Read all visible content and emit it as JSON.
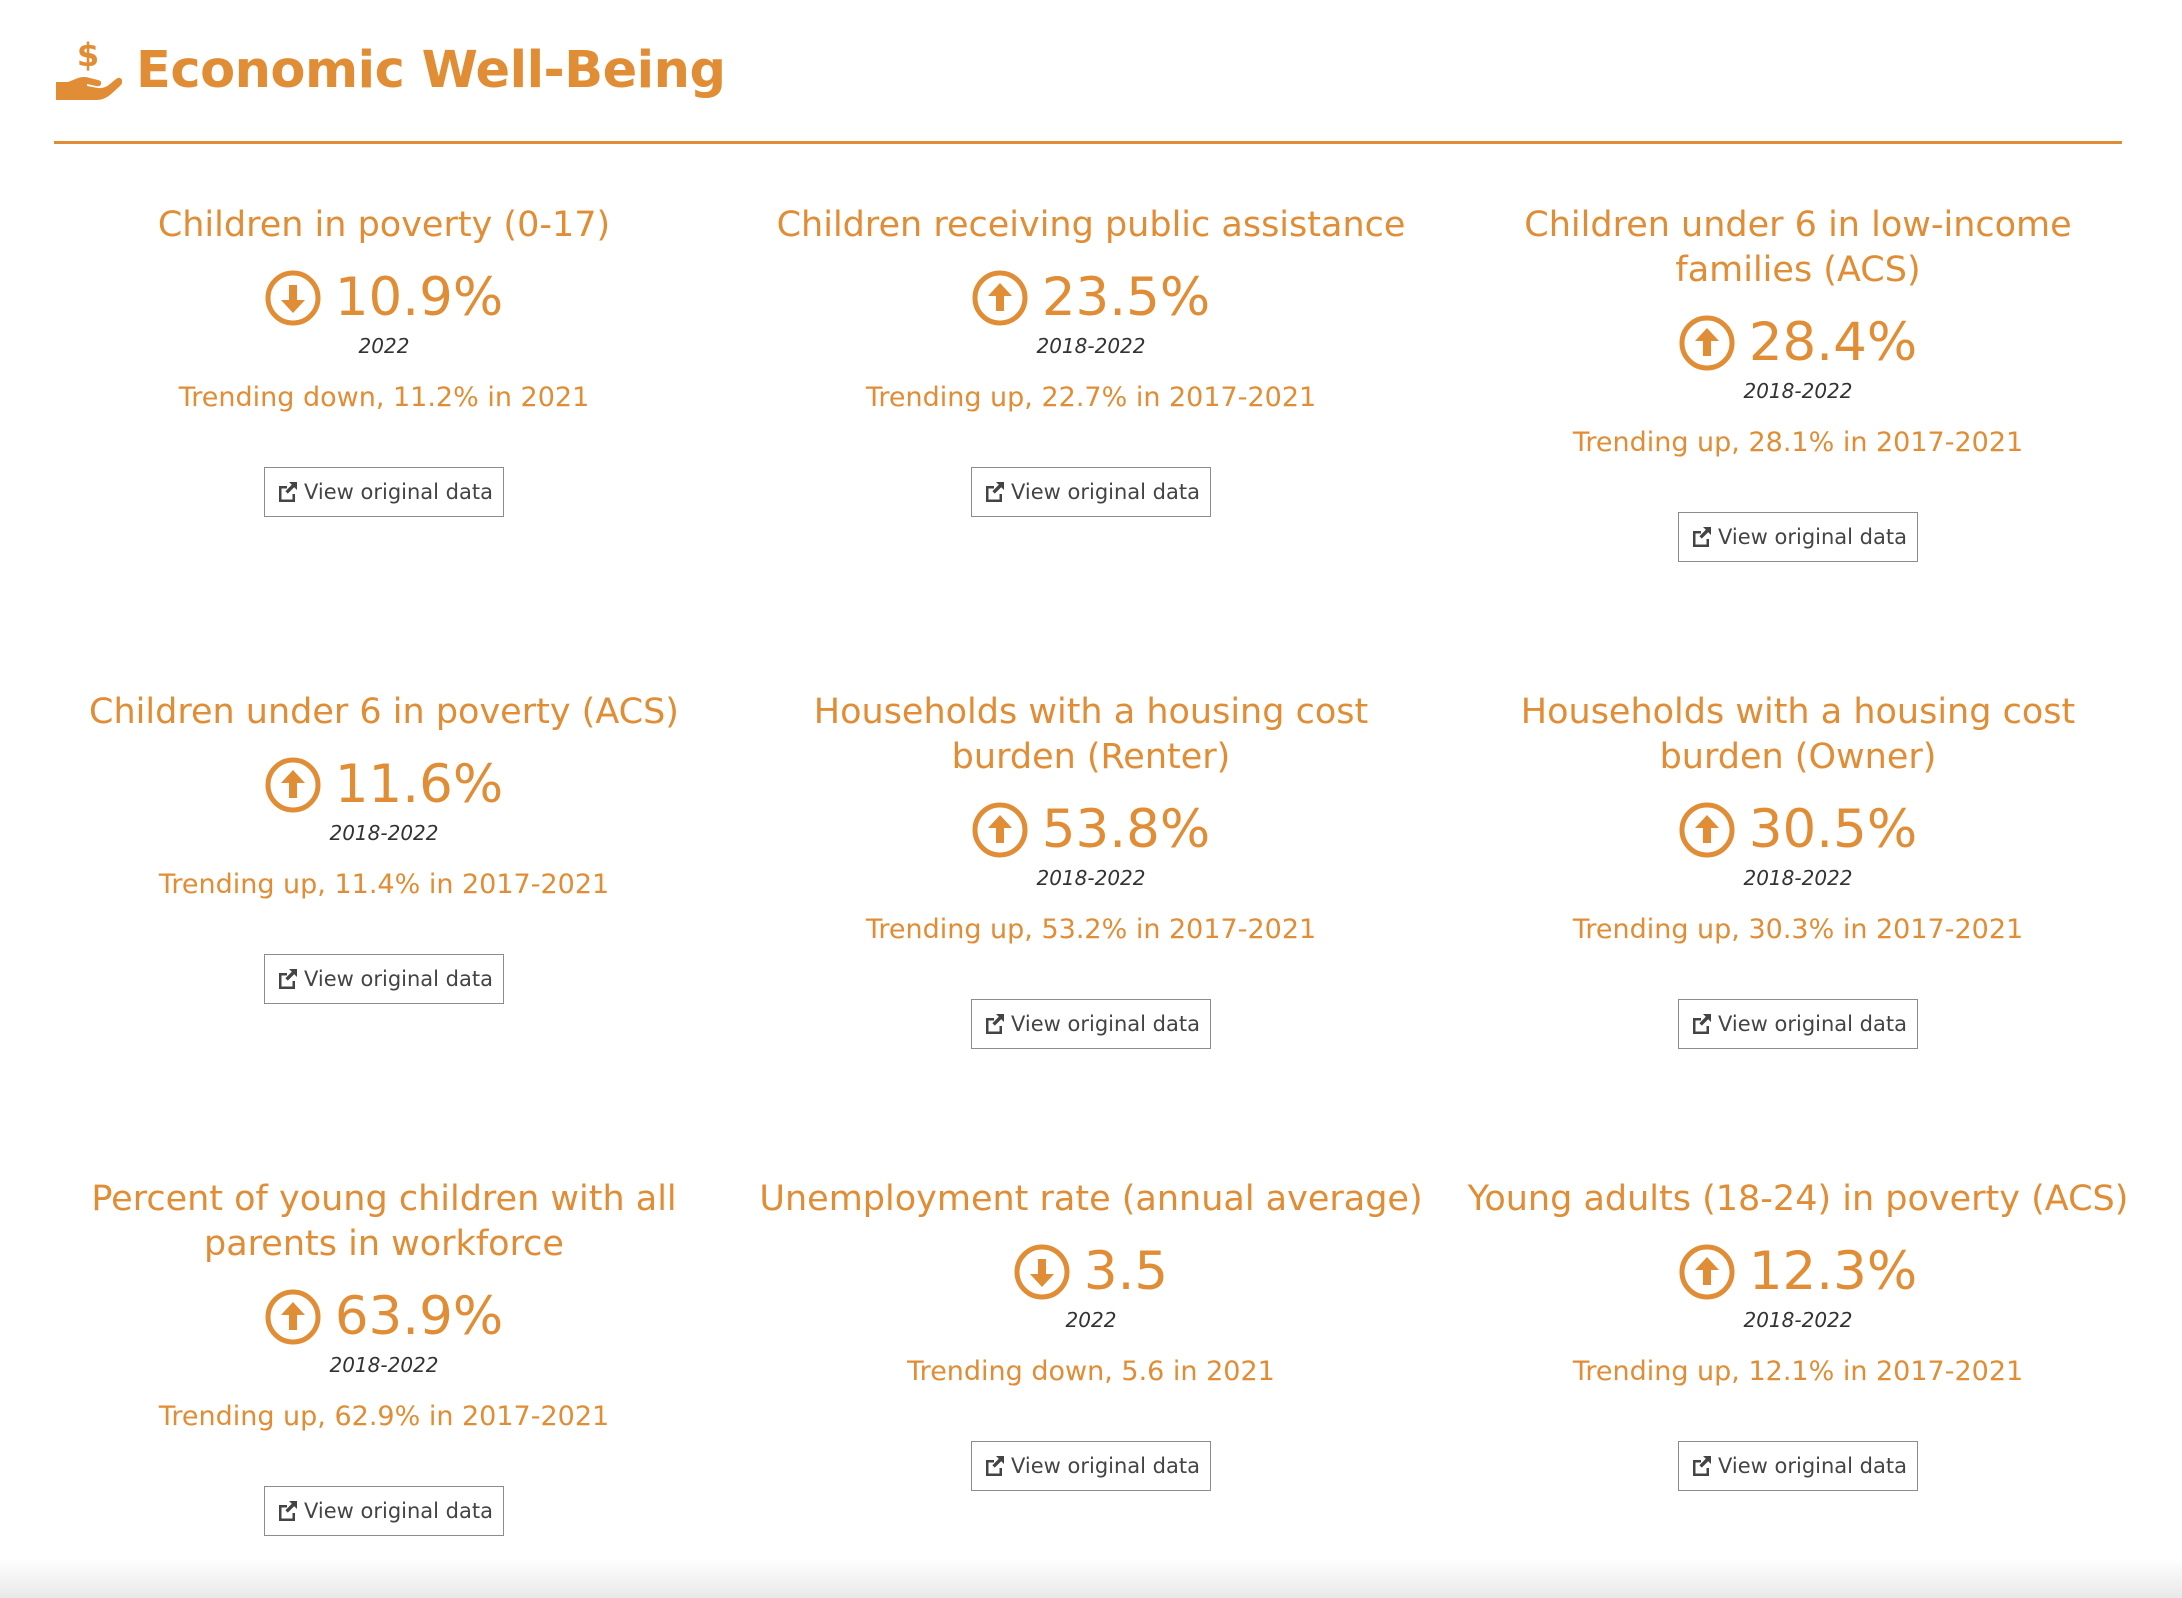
{
  "section": {
    "title": "Economic Well-Being",
    "icon": "hand-dollar-icon",
    "accent_color": "#e08d35"
  },
  "indicators": [
    {
      "title": "Children in poverty (0-17)",
      "trend": "down",
      "trend_icon": "arrow-circle-down-icon",
      "value": "10.9%",
      "period": "2022",
      "trend_text": "Trending down, 11.2% in 2021",
      "button_label": "View original data"
    },
    {
      "title": "Children receiving public assistance",
      "trend": "up",
      "trend_icon": "arrow-circle-up-icon",
      "value": "23.5%",
      "period": "2018-2022",
      "trend_text": "Trending up, 22.7% in 2017-2021",
      "button_label": "View original data"
    },
    {
      "title": "Children under 6 in low-income families (ACS)",
      "trend": "up",
      "trend_icon": "arrow-circle-up-icon",
      "value": "28.4%",
      "period": "2018-2022",
      "trend_text": "Trending up, 28.1% in 2017-2021",
      "button_label": "View original data"
    },
    {
      "title": "Children under 6 in poverty (ACS)",
      "trend": "up",
      "trend_icon": "arrow-circle-up-icon",
      "value": "11.6%",
      "period": "2018-2022",
      "trend_text": "Trending up, 11.4% in 2017-2021",
      "button_label": "View original data"
    },
    {
      "title": "Households with a housing cost burden (Renter)",
      "trend": "up",
      "trend_icon": "arrow-circle-up-icon",
      "value": "53.8%",
      "period": "2018-2022",
      "trend_text": "Trending up, 53.2% in 2017-2021",
      "button_label": "View original data"
    },
    {
      "title": "Households with a housing cost burden (Owner)",
      "trend": "up",
      "trend_icon": "arrow-circle-up-icon",
      "value": "30.5%",
      "period": "2018-2022",
      "trend_text": "Trending up, 30.3% in 2017-2021",
      "button_label": "View original data"
    },
    {
      "title": "Percent of young children with all parents in workforce",
      "trend": "up",
      "trend_icon": "arrow-circle-up-icon",
      "value": "63.9%",
      "period": "2018-2022",
      "trend_text": "Trending up, 62.9% in 2017-2021",
      "button_label": "View original data"
    },
    {
      "title": "Unemployment rate (annual average)",
      "trend": "down",
      "trend_icon": "arrow-circle-down-icon",
      "value": "3.5",
      "period": "2022",
      "trend_text": "Trending down, 5.6 in 2021",
      "button_label": "View original data"
    },
    {
      "title": "Young adults (18-24) in poverty (ACS)",
      "trend": "up",
      "trend_icon": "arrow-circle-up-icon",
      "value": "12.3%",
      "period": "2018-2022",
      "trend_text": "Trending up, 12.1% in 2017-2021",
      "button_label": "View original data"
    }
  ]
}
